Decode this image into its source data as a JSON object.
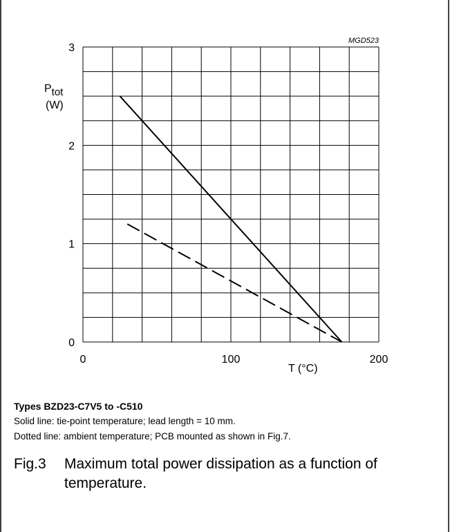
{
  "chart_data": {
    "type": "line",
    "code": "MGD523",
    "ylabel_main": "P",
    "ylabel_sub": "tot",
    "ylabel_unit": "(W)",
    "xlabel": "T (°C)",
    "xlim": [
      0,
      200
    ],
    "ylim": [
      0,
      3
    ],
    "x_ticks": [
      "0",
      "100",
      "200"
    ],
    "y_ticks": [
      "0",
      "1",
      "2",
      "3"
    ],
    "x_tick_values": [
      0,
      100,
      200
    ],
    "y_tick_values": [
      0,
      1,
      2,
      3
    ],
    "x_grid_step": 20,
    "y_grid_step": 0.25,
    "grid": true,
    "series": [
      {
        "style": "solid",
        "x": [
          25,
          175
        ],
        "y": [
          2.5,
          0
        ]
      },
      {
        "style": "dashed",
        "x": [
          30,
          175
        ],
        "y": [
          1.2,
          0
        ]
      }
    ]
  },
  "caption": {
    "types": "Types BZD23-C7V5 to -C510",
    "solid_note": "Solid line: tie-point temperature; lead length = 10 mm.",
    "dotted_note": "Dotted line: ambient temperature; PCB mounted as shown in Fig.7.",
    "fig_number": "Fig.3",
    "fig_text": "Maximum total power dissipation as a function of temperature."
  }
}
